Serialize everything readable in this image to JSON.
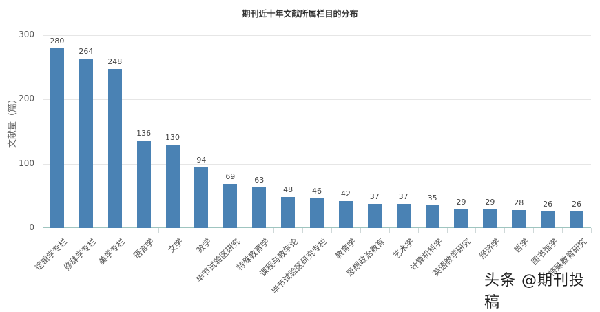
{
  "chart_data": {
    "type": "bar",
    "title": "期刊近十年文献所属栏目的分布",
    "xlabel": "",
    "ylabel": "文献量（篇）",
    "ylim": [
      0,
      300
    ],
    "yticks": [
      0,
      100,
      200,
      300
    ],
    "grid": true,
    "legend": null,
    "bar_color": "#4a82b4",
    "categories": [
      "逻辑学专栏",
      "修辞学专栏",
      "美学专栏",
      "语言学",
      "文学",
      "数学",
      "毕节试验区研究",
      "特殊教育学",
      "课程与教学论",
      "毕节试验区研究专栏",
      "教育学",
      "思想政治教育",
      "艺术学",
      "计算机科学",
      "英语教学研究",
      "经济学",
      "哲学",
      "图书馆学",
      "特殊教育研究"
    ],
    "values": [
      280,
      264,
      248,
      136,
      130,
      94,
      69,
      63,
      48,
      46,
      42,
      37,
      37,
      35,
      29,
      29,
      28,
      26,
      26
    ]
  },
  "watermark": "头条 @期刊投稿"
}
